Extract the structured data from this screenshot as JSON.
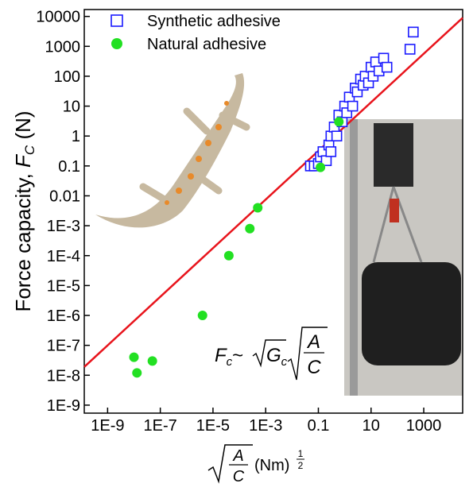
{
  "chart_data": {
    "type": "scatter",
    "log_x": true,
    "log_y": true,
    "ylabel": {
      "text": "Force capacity, ",
      "var": "F",
      "sub": "C",
      "unit": " (N)"
    },
    "xlabel": {
      "num": "A",
      "den": "C",
      "unit": "(Nm)",
      "exp_num": "1",
      "exp_den": "2"
    },
    "annotation": {
      "f": "F",
      "fsub": "c",
      "sim": "~",
      "g": "G",
      "gsub": "c",
      "num": "A",
      "den": "C"
    },
    "xlim": [
      1.3e-10,
      30000
    ],
    "ylim": [
      5.4e-10,
      17000
    ],
    "xticks": [
      {
        "value": 1e-09,
        "label": "1E-9"
      },
      {
        "value": 1e-07,
        "label": "1E-7"
      },
      {
        "value": 1e-05,
        "label": "1E-5"
      },
      {
        "value": 0.001,
        "label": "1E-3"
      },
      0.1,
      10,
      1000
    ],
    "yticks": [
      10000,
      1000,
      100,
      10,
      1,
      0.1,
      0.01,
      {
        "value": 0.001,
        "label": "1E-3"
      },
      {
        "value": 0.0001,
        "label": "1E-4"
      },
      {
        "value": 1e-05,
        "label": "1E-5"
      },
      {
        "value": 1e-06,
        "label": "1E-6"
      },
      {
        "value": 1e-07,
        "label": "1E-7"
      },
      {
        "value": 1e-08,
        "label": "1E-8"
      },
      {
        "value": 1e-09,
        "label": "1E-9"
      }
    ],
    "fit_line": {
      "color": "#e8141c",
      "x": [
        1.3e-10,
        30000
      ],
      "y": [
        1.9e-08,
        9000
      ]
    },
    "series": [
      {
        "name": "Synthetic adhesive",
        "color": "#1a1aff",
        "marker": "square",
        "x": [
          0.05,
          0.07,
          0.1,
          0.12,
          0.15,
          0.2,
          0.25,
          0.3,
          0.3,
          0.4,
          0.5,
          0.6,
          0.8,
          1,
          1.2,
          1.5,
          2,
          2.5,
          3,
          4,
          5,
          6,
          8,
          10,
          12,
          15,
          20,
          30,
          40,
          300,
          400
        ],
        "values": [
          0.1,
          0.1,
          0.12,
          0.2,
          0.3,
          0.15,
          0.5,
          1,
          0.3,
          2,
          1,
          5,
          3,
          10,
          6,
          20,
          10,
          40,
          30,
          80,
          50,
          100,
          60,
          200,
          100,
          300,
          150,
          400,
          200,
          800,
          3000
        ]
      },
      {
        "name": "Natural adhesive",
        "color": "#22e022",
        "marker": "circle",
        "x": [
          1e-08,
          1.3e-08,
          5e-08,
          4e-06,
          4e-05,
          0.00025,
          0.0005,
          0.12,
          0.6
        ],
        "values": [
          4e-08,
          1.2e-08,
          3e-08,
          1e-06,
          0.0001,
          0.0008,
          0.004,
          0.09,
          3
        ]
      }
    ]
  }
}
